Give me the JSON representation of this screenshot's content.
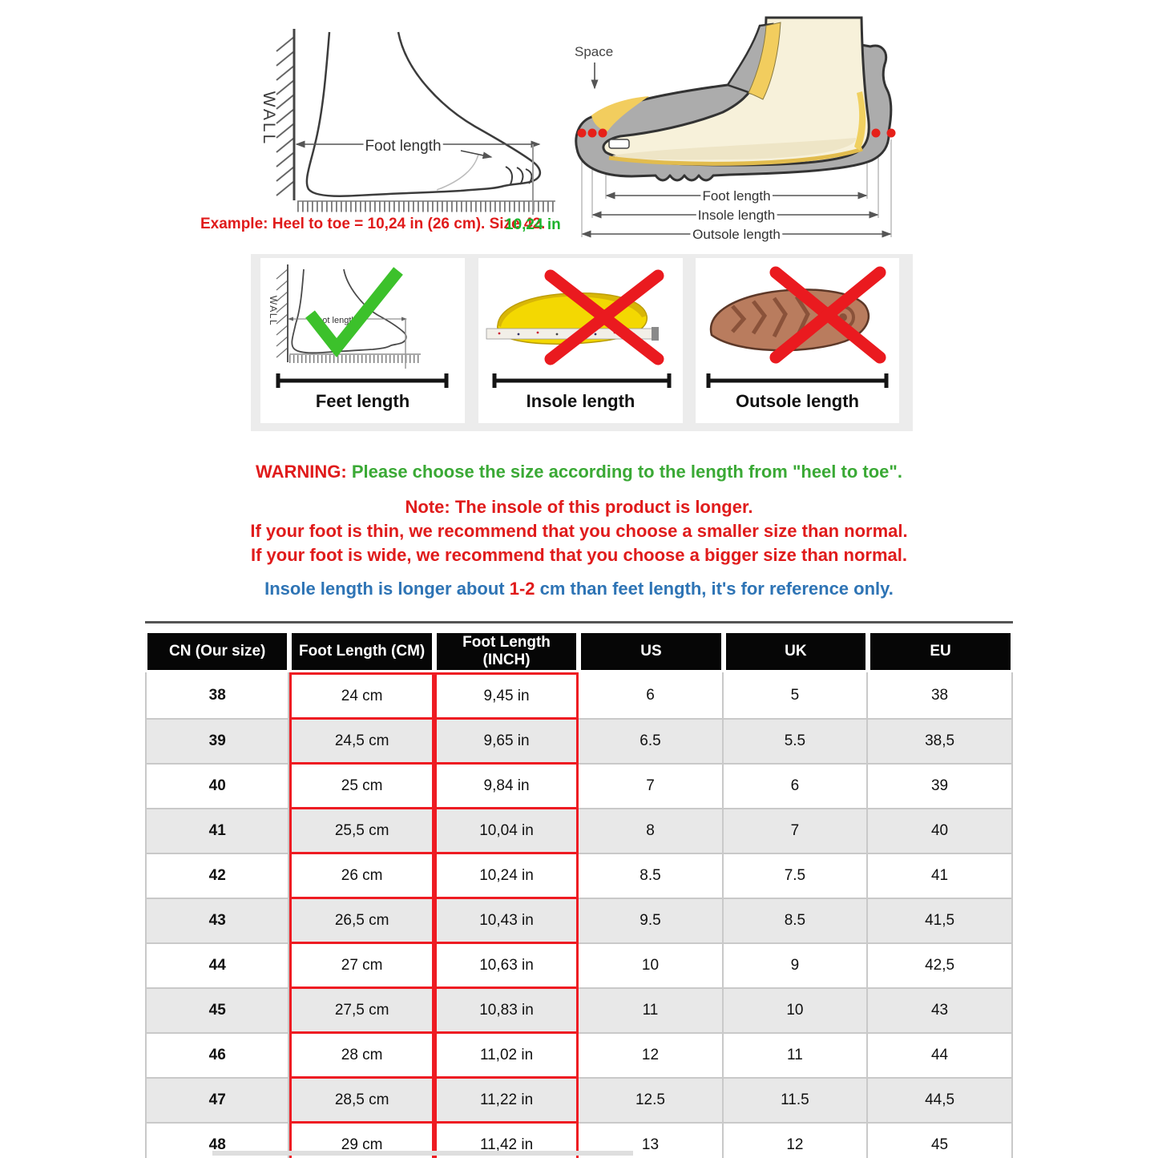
{
  "colors": {
    "text_red": "#e01b1b",
    "text_green": "#3aa935",
    "text_blue": "#2e74b5",
    "value_green": "#1cb32b",
    "table_header_bg": "#060606",
    "row_alt_bg": "#e8e8e8",
    "red_box_border": "#ee1b22",
    "strip_bg": "#ececec",
    "insole_yellow": "#f3d802",
    "outsole_brown": "#b97c5e",
    "shoe_gray": "#acacac",
    "foot_cream": "#f7f1da",
    "check_green": "#3cc12b",
    "cross_red": "#ea1a1f"
  },
  "measure_diagram": {
    "wall_label": "WALL",
    "foot_length_label": "Foot length",
    "example_text": "Example: Heel to toe = 10,24 in (26 cm). Size 42.",
    "example_value": "10,24 in"
  },
  "shoe_diagram": {
    "space_label": "Space",
    "foot_length_label": "Foot length",
    "insole_length_label": "Insole length",
    "outsole_length_label": "Outsole length"
  },
  "panels": {
    "feet": {
      "label": "Feet length",
      "wall_label": "WALL",
      "inner_label": "Foot length",
      "mark": "green-check"
    },
    "insole": {
      "label": "Insole length",
      "mark": "red-cross"
    },
    "outsole": {
      "label": "Outsole length",
      "mark": "red-cross"
    }
  },
  "warning": {
    "prefix": "WARNING:",
    "message": "Please choose the size according to the length from \"heel to toe\".",
    "note1": "Note: The insole of this product is longer.",
    "note2": "If your foot is thin, we recommend that you choose a smaller size than normal.",
    "note3": "If your foot is wide, we recommend that you choose a bigger size than normal.",
    "insole_pre": "Insole length is longer about ",
    "insole_highlight": "1-2",
    "insole_post": " cm than feet length, it's for reference only."
  },
  "size_table": {
    "headers": [
      "CN (Our size)",
      "Foot Length (CM)",
      "Foot Length (INCH)",
      "US",
      "UK",
      "EU"
    ],
    "rows": [
      [
        "38",
        "24 cm",
        "9,45 in",
        "6",
        "5",
        "38"
      ],
      [
        "39",
        "24,5 cm",
        "9,65 in",
        "6.5",
        "5.5",
        "38,5"
      ],
      [
        "40",
        "25 cm",
        "9,84 in",
        "7",
        "6",
        "39"
      ],
      [
        "41",
        "25,5 cm",
        "10,04 in",
        "8",
        "7",
        "40"
      ],
      [
        "42",
        "26 cm",
        "10,24 in",
        "8.5",
        "7.5",
        "41"
      ],
      [
        "43",
        "26,5 cm",
        "10,43 in",
        "9.5",
        "8.5",
        "41,5"
      ],
      [
        "44",
        "27 cm",
        "10,63 in",
        "10",
        "9",
        "42,5"
      ],
      [
        "45",
        "27,5 cm",
        "10,83 in",
        "11",
        "10",
        "43"
      ],
      [
        "46",
        "28 cm",
        "11,02 in",
        "12",
        "11",
        "44"
      ],
      [
        "47",
        "28,5 cm",
        "11,22 in",
        "12.5",
        "11.5",
        "44,5"
      ],
      [
        "48",
        "29 cm",
        "11,42 in",
        "13",
        "12",
        "45"
      ]
    ]
  }
}
